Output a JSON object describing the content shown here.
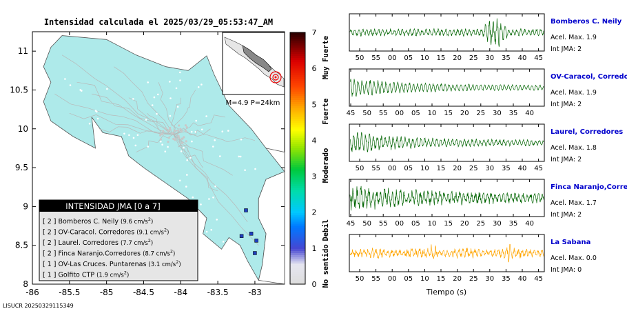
{
  "title": "Intensidad calculada el 2025/03/29_05:53:47_AM",
  "footer_code": "LISUCR 20250329115349",
  "colors": {
    "land": "#aeeaea",
    "road": "#b8b8b8",
    "trace_green": "#006400",
    "trace_orange": "#ffa500",
    "station_name": "#0000cc",
    "station_marker": "#1f3fbf"
  },
  "map": {
    "x_ticks": [
      "-86",
      "-85.5",
      "-85",
      "-84.5",
      "-84",
      "-83.5",
      "-83"
    ],
    "y_ticks": [
      "8",
      "8.5",
      "9",
      "9.5",
      "10",
      "10.5",
      "11"
    ],
    "xlim": [
      -86,
      -82.6
    ],
    "ylim": [
      8,
      11.25
    ],
    "inset_label": "M=4.9 P=24km",
    "legend": {
      "title": "INTENSIDAD JMA [0 a 7]",
      "entries": [
        {
          "level": "[ 2 ]",
          "name": "Bomberos C. Neily",
          "value": "(9.6 cm/s",
          "sup": "2",
          "close": ")"
        },
        {
          "level": "[ 2 ]",
          "name": "OV-Caracol. Corredores",
          "value": "(9.1 cm/s",
          "sup": "2",
          "close": ")"
        },
        {
          "level": "[ 2 ]",
          "name": "Laurel. Corredores",
          "value": "(7.7 cm/s",
          "sup": "2",
          "close": ")"
        },
        {
          "level": "[ 2 ]",
          "name": "Finca Naranjo.Corredores",
          "value": "(8.7 cm/s",
          "sup": "2",
          "close": ")"
        },
        {
          "level": "[ 1 ]",
          "name": "OV-Las Cruces. Puntarenas",
          "value": "(3.1 cm/s",
          "sup": "2",
          "close": ")"
        },
        {
          "level": "[ 1 ]",
          "name": "Golfito CTP",
          "value": "(1.9 cm/s",
          "sup": "2",
          "close": ")"
        }
      ]
    }
  },
  "colorbar": {
    "ticks": [
      "0",
      "1",
      "2",
      "3",
      "4",
      "5",
      "6",
      "7"
    ],
    "categories": [
      "No sentido",
      "Debil",
      "Moderado",
      "Fuerte",
      "Muy Fuerte"
    ]
  },
  "chart_data": [
    {
      "type": "line",
      "title": "Intensidad calculada el 2025/03/29_05:53:47_AM",
      "description_source": "map of JMA intensity with station legend",
      "series": [
        {
          "name": "Bomberos C. Neily",
          "intensity": 2,
          "accel_cm_s2": 9.6
        },
        {
          "name": "OV-Caracol. Corredores",
          "intensity": 2,
          "accel_cm_s2": 9.1
        },
        {
          "name": "Laurel. Corredores",
          "intensity": 2,
          "accel_cm_s2": 7.7
        },
        {
          "name": "Finca Naranjo.Corredores",
          "intensity": 2,
          "accel_cm_s2": 8.7
        },
        {
          "name": "OV-Las Cruces. Puntarenas",
          "intensity": 1,
          "accel_cm_s2": 3.1
        },
        {
          "name": "Golfito CTP",
          "intensity": 1,
          "accel_cm_s2": 1.9
        }
      ],
      "xlim": [
        -86,
        -82.6
      ],
      "ylim": [
        8,
        11.25
      ],
      "magnitude": "4.9",
      "depth_km": "24"
    },
    {
      "type": "line",
      "xlabel": "Tiempo (s)",
      "traces": [
        {
          "name": "Bomberos C. Neily",
          "accel_label": "Acel. Max. 1.9",
          "jma_label": "Int JMA: 2",
          "ticks": [
            "50",
            "55",
            "00",
            "05",
            "10",
            "15",
            "20",
            "25",
            "30",
            "35",
            "40",
            "45"
          ],
          "tick_start": 50,
          "color": "green",
          "burst": [
            0.68,
            0.82
          ],
          "amp": 1.0,
          "noise": 0.35
        },
        {
          "name": "OV-Caracol, Corredores",
          "accel_label": "Acel. Max. 1.9",
          "jma_label": "Int JMA: 2",
          "ticks": [
            "45",
            "50",
            "55",
            "00",
            "05",
            "10",
            "15",
            "20",
            "25",
            "30",
            "35",
            "40"
          ],
          "tick_start": 45,
          "color": "green",
          "burst": [
            0.0,
            0.25
          ],
          "amp": 0.9,
          "noise": 0.2
        },
        {
          "name": "Laurel, Corredores",
          "accel_label": "Acel. Max. 1.8",
          "jma_label": "Int JMA: 2",
          "ticks": [
            "50",
            "55",
            "00",
            "05",
            "10",
            "15",
            "20",
            "25",
            "30",
            "35",
            "40",
            "45"
          ],
          "tick_start": 50,
          "color": "green",
          "burst": [
            0.0,
            0.35
          ],
          "amp": 0.9,
          "noise": 0.3
        },
        {
          "name": "Finca Naranjo,Corredores",
          "accel_label": "Acel. Max. 1.7",
          "jma_label": "Int JMA: 2",
          "ticks": [
            "45",
            "50",
            "55",
            "00",
            "05",
            "10",
            "15",
            "20",
            "25",
            "30",
            "35",
            "40"
          ],
          "tick_start": 45,
          "color": "green",
          "burst": [
            0.0,
            0.7
          ],
          "amp": 0.85,
          "noise": 0.45
        },
        {
          "name": "La Sabana",
          "accel_label": "Acel. Max. 0.0",
          "jma_label": "Int JMA: 0",
          "ticks": [
            "50",
            "55",
            "00",
            "05",
            "10",
            "15",
            "20",
            "25",
            "30",
            "35",
            "40",
            "45"
          ],
          "tick_start": 50,
          "color": "orange",
          "burst": [
            0.0,
            1.0
          ],
          "amp": 0.5,
          "noise": 0.6
        }
      ]
    }
  ]
}
